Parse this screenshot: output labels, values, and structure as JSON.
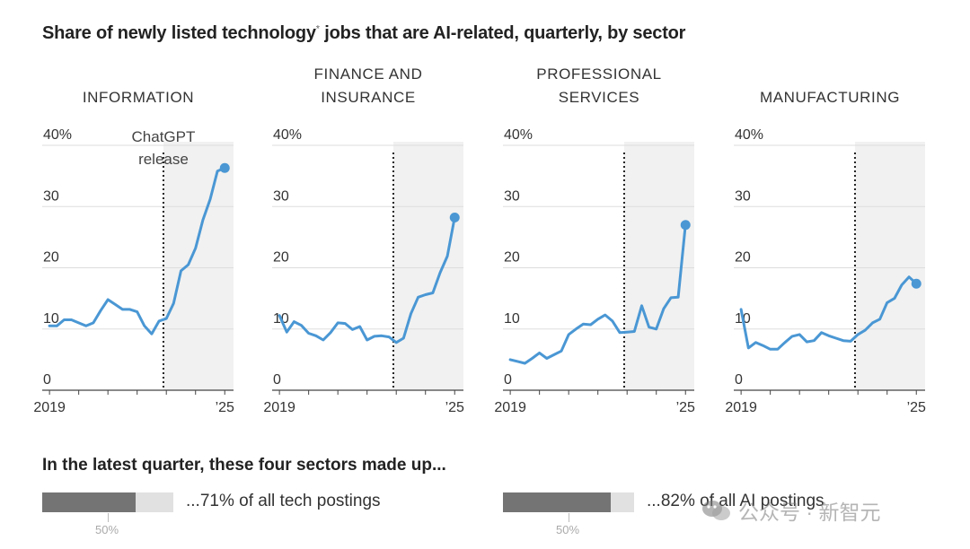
{
  "title_main": "Share of newly listed technology",
  "title_mark": "*",
  "title_rest": " jobs that are AI-related, quarterly, by sector",
  "annotation": [
    "ChatGPT",
    "release"
  ],
  "colors": {
    "line": "#4a97d4",
    "shade": "#f1f1f1",
    "grid": "#dddddd",
    "bar_fill": "#747474",
    "bar_track": "#e1e1e1"
  },
  "chart_data": [
    {
      "type": "line",
      "title_lines": [
        "INFORMATION"
      ],
      "y_ticks": [
        "40%",
        "30",
        "20",
        "10",
        "0"
      ],
      "x_tick_labels": [
        "2019",
        "’25"
      ],
      "ylim": [
        0,
        40
      ],
      "x": [
        2019.0,
        2019.25,
        2019.5,
        2019.75,
        2020.0,
        2020.25,
        2020.5,
        2020.75,
        2021.0,
        2021.25,
        2021.5,
        2021.75,
        2022.0,
        2022.25,
        2022.5,
        2022.75,
        2023.0,
        2023.25,
        2023.5,
        2023.75,
        2024.0,
        2024.25,
        2024.5,
        2024.75,
        2025.0
      ],
      "values": [
        10.5,
        10.5,
        11.5,
        11.5,
        11.0,
        10.5,
        11.0,
        13.0,
        14.8,
        14.0,
        13.2,
        13.2,
        12.8,
        10.5,
        9.2,
        11.3,
        11.7,
        14.2,
        19.5,
        20.5,
        23.2,
        27.8,
        31.2,
        35.8,
        36.3
      ],
      "highlight_last": true,
      "release_x": 2022.9,
      "xlim": [
        2018.75,
        2025.3
      ]
    },
    {
      "type": "line",
      "title_lines": [
        "FINANCE AND",
        "INSURANCE"
      ],
      "y_ticks": [
        "40%",
        "30",
        "20",
        "10",
        "0"
      ],
      "x_tick_labels": [
        "2019",
        "’25"
      ],
      "ylim": [
        0,
        40
      ],
      "x": [
        2019.0,
        2019.25,
        2019.5,
        2019.75,
        2020.0,
        2020.25,
        2020.5,
        2020.75,
        2021.0,
        2021.25,
        2021.5,
        2021.75,
        2022.0,
        2022.25,
        2022.5,
        2022.75,
        2023.0,
        2023.25,
        2023.5,
        2023.75,
        2024.0,
        2024.25,
        2024.5,
        2024.75,
        2025.0
      ],
      "values": [
        12.2,
        9.5,
        11.2,
        10.6,
        9.3,
        8.9,
        8.2,
        9.4,
        11.0,
        10.9,
        9.9,
        10.4,
        8.2,
        8.8,
        8.9,
        8.7,
        7.8,
        8.5,
        12.5,
        15.2,
        15.6,
        15.9,
        19.2,
        21.9,
        28.2
      ],
      "highlight_last": true,
      "release_x": 2022.9,
      "xlim": [
        2018.75,
        2025.3
      ]
    },
    {
      "type": "line",
      "title_lines": [
        "PROFESSIONAL",
        "SERVICES"
      ],
      "y_ticks": [
        "40%",
        "30",
        "20",
        "10",
        "0"
      ],
      "x_tick_labels": [
        "2019",
        "’25"
      ],
      "ylim": [
        0,
        40
      ],
      "x": [
        2019.0,
        2019.25,
        2019.5,
        2019.75,
        2020.0,
        2020.25,
        2020.5,
        2020.75,
        2021.0,
        2021.25,
        2021.5,
        2021.75,
        2022.0,
        2022.25,
        2022.5,
        2022.75,
        2023.0,
        2023.25,
        2023.5,
        2023.75,
        2024.0,
        2024.25,
        2024.5,
        2024.75,
        2025.0
      ],
      "values": [
        5.0,
        4.7,
        4.4,
        5.2,
        6.1,
        5.2,
        5.8,
        6.4,
        9.1,
        10.0,
        10.8,
        10.7,
        11.6,
        12.3,
        11.3,
        9.4,
        9.5,
        9.6,
        13.8,
        10.3,
        10.0,
        13.3,
        15.1,
        15.2,
        27.0
      ],
      "highlight_last": true,
      "release_x": 2022.9,
      "xlim": [
        2018.75,
        2025.3
      ]
    },
    {
      "type": "line",
      "title_lines": [
        "MANUFACTURING"
      ],
      "y_ticks": [
        "40%",
        "30",
        "20",
        "10",
        "0"
      ],
      "x_tick_labels": [
        "2019",
        "’25"
      ],
      "ylim": [
        0,
        40
      ],
      "x": [
        2019.0,
        2019.25,
        2019.5,
        2019.75,
        2020.0,
        2020.25,
        2020.5,
        2020.75,
        2021.0,
        2021.25,
        2021.5,
        2021.75,
        2022.0,
        2022.25,
        2022.5,
        2022.75,
        2023.0,
        2023.25,
        2023.5,
        2023.75,
        2024.0,
        2024.25,
        2024.5,
        2024.75,
        2025.0
      ],
      "values": [
        13.2,
        6.9,
        7.8,
        7.3,
        6.7,
        6.7,
        7.8,
        8.8,
        9.1,
        7.9,
        8.1,
        9.4,
        8.9,
        8.5,
        8.1,
        8.0,
        9.1,
        9.8,
        11.0,
        11.6,
        14.3,
        15.0,
        17.2,
        18.5,
        17.4
      ],
      "highlight_last": true,
      "release_x": 2022.9,
      "xlim": [
        2018.75,
        2025.3
      ]
    }
  ],
  "summary": {
    "title": "In the latest quarter, these four sectors made up...",
    "bars": [
      {
        "value": 71,
        "label": "...71% of all tech postings",
        "tick_label": "50%"
      },
      {
        "value": 82,
        "label": "...82% of all AI postings",
        "tick_label": "50%"
      }
    ]
  },
  "watermark": {
    "text": "公众号 · 新智元"
  }
}
